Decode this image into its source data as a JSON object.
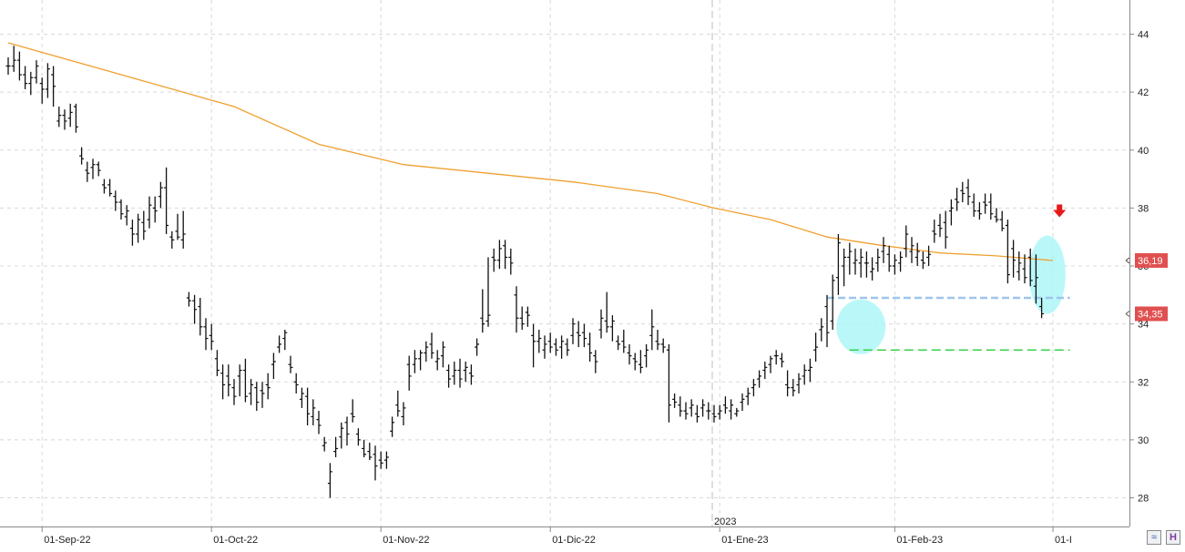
{
  "chart_data": {
    "type": "ohlc",
    "title": "",
    "xlabel": "",
    "ylabel": "",
    "ylim": [
      27,
      45
    ],
    "y_ticks": [
      28,
      30,
      32,
      34,
      36,
      38,
      40,
      42,
      44
    ],
    "grid": true,
    "x_labels": [
      {
        "label": "01-Sep-22",
        "index": 6
      },
      {
        "label": "01-Oct-22",
        "index": 36
      },
      {
        "label": "01-Nov-22",
        "index": 66
      },
      {
        "label": "01-Dic-22",
        "index": 96
      },
      {
        "label": "01-Ene-23",
        "index": 126
      },
      {
        "label": "01-Feb-23",
        "index": 157
      },
      {
        "label": "01-I",
        "index": 185
      }
    ],
    "year_marker": {
      "label": "2023",
      "index": 125
    },
    "ohlc": [
      [
        42.9,
        43.2,
        42.6,
        42.9
      ],
      [
        42.9,
        43.6,
        42.7,
        43.1
      ],
      [
        43.1,
        43.4,
        42.4,
        42.6
      ],
      [
        42.6,
        42.9,
        42.1,
        42.3
      ],
      [
        42.3,
        42.7,
        41.9,
        42.5
      ],
      [
        42.5,
        43.1,
        42.3,
        42.9
      ],
      [
        42.3,
        42.5,
        41.6,
        42.1
      ],
      [
        42.1,
        43.0,
        41.8,
        42.8
      ],
      [
        42.6,
        42.9,
        41.5,
        42.2
      ],
      [
        41.0,
        41.5,
        40.8,
        41.2
      ],
      [
        41.2,
        41.4,
        40.7,
        41.0
      ],
      [
        41.1,
        41.6,
        40.8,
        41.3
      ],
      [
        41.5,
        41.6,
        40.6,
        40.8
      ],
      [
        39.8,
        40.1,
        39.5,
        39.7
      ],
      [
        39.3,
        39.6,
        38.9,
        39.2
      ],
      [
        39.4,
        39.7,
        39.0,
        39.5
      ],
      [
        39.5,
        39.6,
        39.1,
        39.3
      ],
      [
        38.8,
        39.0,
        38.5,
        38.7
      ],
      [
        38.8,
        39.0,
        38.4,
        38.5
      ],
      [
        38.4,
        38.6,
        37.9,
        38.2
      ],
      [
        38.2,
        38.3,
        37.6,
        37.8
      ],
      [
        37.7,
        38.1,
        37.4,
        37.9
      ],
      [
        37.3,
        37.6,
        36.7,
        37.1
      ],
      [
        37.1,
        37.8,
        36.8,
        37.6
      ],
      [
        37.5,
        37.9,
        36.9,
        37.2
      ],
      [
        37.6,
        38.4,
        37.3,
        38.1
      ],
      [
        38.0,
        38.4,
        37.5,
        37.9
      ],
      [
        38.4,
        38.9,
        38.0,
        38.7
      ],
      [
        38.7,
        39.4,
        37.1,
        37.4
      ],
      [
        37.0,
        37.2,
        36.6,
        36.9
      ],
      [
        37.2,
        37.8,
        36.9,
        37.0
      ],
      [
        36.9,
        37.9,
        36.6,
        37.1
      ],
      [
        34.9,
        35.1,
        34.6,
        34.8
      ],
      [
        34.8,
        35.0,
        34.0,
        34.5
      ],
      [
        34.6,
        34.9,
        33.6,
        33.9
      ],
      [
        33.9,
        34.2,
        33.1,
        33.5
      ],
      [
        33.6,
        34.0,
        33.1,
        33.4
      ],
      [
        32.8,
        33.1,
        32.2,
        32.4
      ],
      [
        32.3,
        32.6,
        31.4,
        31.9
      ],
      [
        32.2,
        32.6,
        31.5,
        31.9
      ],
      [
        31.8,
        32.1,
        31.2,
        31.5
      ],
      [
        32.2,
        32.6,
        31.5,
        32.4
      ],
      [
        32.4,
        32.8,
        31.3,
        31.5
      ],
      [
        31.6,
        32.1,
        31.2,
        31.9
      ],
      [
        31.8,
        32.0,
        31.0,
        31.3
      ],
      [
        31.7,
        32.0,
        31.1,
        31.6
      ],
      [
        31.9,
        32.3,
        31.4,
        31.8
      ],
      [
        32.6,
        33.0,
        32.1,
        32.7
      ],
      [
        33.2,
        33.6,
        33.0,
        33.3
      ],
      [
        33.5,
        33.8,
        33.1,
        33.7
      ],
      [
        32.6,
        32.9,
        32.3,
        32.5
      ],
      [
        32.0,
        32.3,
        31.6,
        31.9
      ],
      [
        31.4,
        31.8,
        31.1,
        31.6
      ],
      [
        31.5,
        31.8,
        30.5,
        30.9
      ],
      [
        30.8,
        31.4,
        30.5,
        31.1
      ],
      [
        30.7,
        31.0,
        30.2,
        30.5
      ],
      [
        29.8,
        30.1,
        29.6,
        29.9
      ],
      [
        28.5,
        29.2,
        28.0,
        28.9
      ],
      [
        29.6,
        30.1,
        29.4,
        29.7
      ],
      [
        30.1,
        30.6,
        29.7,
        30.4
      ],
      [
        30.6,
        30.8,
        29.8,
        30.2
      ],
      [
        30.9,
        31.4,
        30.6,
        30.8
      ],
      [
        30.2,
        30.4,
        29.8,
        30.0
      ],
      [
        29.7,
        30.0,
        29.4,
        29.5
      ],
      [
        29.6,
        29.9,
        29.3,
        29.4
      ],
      [
        29.5,
        29.8,
        28.6,
        29.1
      ],
      [
        29.3,
        29.6,
        29.0,
        29.2
      ],
      [
        29.3,
        29.6,
        29.0,
        29.4
      ],
      [
        30.3,
        30.8,
        30.1,
        30.6
      ],
      [
        31.2,
        31.7,
        30.8,
        31.0
      ],
      [
        30.8,
        31.3,
        30.5,
        31.1
      ],
      [
        32.6,
        32.9,
        31.7,
        32.2
      ],
      [
        32.6,
        33.1,
        32.3,
        32.8
      ],
      [
        32.8,
        33.1,
        32.4,
        33.0
      ],
      [
        33.0,
        33.4,
        32.7,
        33.2
      ],
      [
        33.3,
        33.7,
        32.8,
        33.0
      ],
      [
        32.7,
        33.1,
        32.4,
        32.8
      ],
      [
        32.9,
        33.4,
        32.5,
        33.2
      ],
      [
        32.4,
        32.6,
        31.8,
        32.1
      ],
      [
        32.2,
        32.7,
        31.9,
        32.4
      ],
      [
        32.4,
        32.8,
        31.8,
        32.1
      ],
      [
        32.4,
        32.7,
        32.0,
        32.5
      ],
      [
        32.3,
        32.6,
        31.9,
        32.2
      ],
      [
        33.2,
        33.5,
        32.9,
        33.3
      ],
      [
        34.2,
        35.2,
        33.7,
        34.0
      ],
      [
        34.1,
        36.3,
        33.9,
        34.3
      ],
      [
        36.3,
        36.6,
        35.8,
        36.2
      ],
      [
        36.2,
        36.9,
        35.9,
        36.6
      ],
      [
        36.7,
        36.9,
        35.9,
        36.3
      ],
      [
        36.3,
        36.6,
        35.7,
        36.1
      ],
      [
        35.0,
        35.3,
        33.7,
        34.2
      ],
      [
        34.2,
        34.6,
        33.8,
        34.0
      ],
      [
        34.4,
        34.6,
        33.9,
        34.3
      ],
      [
        33.6,
        34.0,
        32.5,
        33.4
      ],
      [
        33.4,
        33.8,
        33.0,
        33.5
      ],
      [
        33.1,
        33.6,
        32.8,
        33.3
      ],
      [
        33.4,
        33.7,
        33.0,
        33.2
      ],
      [
        33.3,
        33.5,
        32.9,
        33.1
      ],
      [
        33.2,
        33.6,
        32.8,
        33.4
      ],
      [
        33.3,
        33.5,
        32.9,
        33.1
      ],
      [
        33.6,
        34.2,
        33.3,
        34.0
      ],
      [
        33.7,
        34.1,
        33.2,
        33.6
      ],
      [
        33.7,
        34.0,
        33.2,
        33.5
      ],
      [
        33.3,
        33.7,
        32.7,
        33.0
      ],
      [
        32.9,
        33.1,
        32.3,
        32.7
      ],
      [
        33.8,
        34.5,
        33.5,
        34.2
      ],
      [
        34.1,
        35.1,
        33.7,
        33.9
      ],
      [
        33.9,
        34.3,
        33.4,
        34.1
      ],
      [
        33.4,
        33.6,
        33.1,
        33.3
      ],
      [
        33.4,
        33.8,
        33.0,
        33.2
      ],
      [
        33.0,
        33.3,
        32.6,
        32.9
      ],
      [
        32.8,
        33.0,
        32.4,
        32.7
      ],
      [
        32.6,
        33.1,
        32.3,
        32.5
      ],
      [
        32.9,
        33.3,
        32.5,
        33.1
      ],
      [
        33.6,
        34.5,
        33.1,
        33.9
      ],
      [
        33.4,
        33.8,
        33.1,
        33.3
      ],
      [
        33.3,
        33.5,
        33.0,
        33.2
      ],
      [
        33.1,
        33.3,
        30.6,
        31.2
      ],
      [
        31.4,
        31.6,
        31.1,
        31.3
      ],
      [
        31.2,
        31.5,
        30.8,
        31.0
      ],
      [
        31.0,
        31.3,
        30.7,
        30.9
      ],
      [
        31.1,
        31.4,
        30.8,
        31.2
      ],
      [
        30.9,
        31.2,
        30.6,
        30.8
      ],
      [
        31.1,
        31.4,
        30.8,
        31.2
      ],
      [
        31.0,
        31.3,
        30.7,
        31.0
      ],
      [
        30.9,
        31.2,
        30.6,
        30.8
      ],
      [
        30.9,
        31.2,
        30.7,
        31.0
      ],
      [
        31.2,
        31.5,
        30.9,
        31.1
      ],
      [
        31.0,
        31.4,
        30.7,
        31.2
      ],
      [
        30.9,
        31.1,
        30.8,
        31.0
      ],
      [
        31.3,
        31.6,
        31.0,
        31.4
      ],
      [
        31.5,
        31.8,
        31.2,
        31.6
      ],
      [
        31.8,
        32.1,
        31.5,
        31.9
      ],
      [
        32.1,
        32.4,
        31.8,
        32.2
      ],
      [
        32.4,
        32.7,
        32.1,
        32.5
      ],
      [
        32.6,
        32.9,
        32.3,
        32.8
      ],
      [
        32.9,
        33.1,
        32.6,
        32.9
      ],
      [
        32.8,
        33.0,
        32.5,
        32.7
      ],
      [
        31.9,
        32.4,
        31.5,
        31.8
      ],
      [
        31.8,
        32.1,
        31.5,
        31.7
      ],
      [
        31.9,
        32.3,
        31.6,
        32.1
      ],
      [
        32.2,
        32.6,
        31.9,
        32.4
      ],
      [
        32.4,
        32.8,
        32.0,
        32.5
      ],
      [
        33.1,
        33.7,
        32.7,
        33.2
      ],
      [
        33.8,
        34.2,
        33.4,
        33.9
      ],
      [
        34.6,
        35.0,
        33.2,
        33.7
      ],
      [
        34.1,
        35.7,
        33.8,
        35.5
      ],
      [
        35.6,
        37.1,
        35.0,
        36.8
      ],
      [
        36.0,
        36.6,
        35.3,
        36.3
      ],
      [
        36.3,
        36.8,
        35.7,
        36.5
      ],
      [
        36.1,
        36.6,
        35.7,
        36.2
      ],
      [
        36.1,
        36.6,
        35.6,
        36.3
      ],
      [
        36.1,
        36.5,
        35.6,
        36.1
      ],
      [
        35.8,
        36.3,
        35.5,
        35.9
      ],
      [
        36.1,
        36.6,
        35.8,
        36.3
      ],
      [
        36.5,
        37.0,
        36.1,
        36.7
      ],
      [
        36.4,
        36.7,
        35.8,
        36.0
      ],
      [
        36.0,
        36.4,
        35.7,
        36.2
      ],
      [
        36.1,
        36.5,
        35.8,
        36.3
      ],
      [
        36.6,
        37.4,
        36.3,
        37.1
      ],
      [
        36.5,
        37.0,
        36.1,
        36.7
      ],
      [
        36.3,
        36.8,
        36.0,
        36.5
      ],
      [
        36.2,
        36.5,
        35.9,
        36.1
      ],
      [
        36.3,
        36.7,
        36.0,
        36.4
      ],
      [
        37.2,
        37.6,
        36.8,
        37.1
      ],
      [
        37.4,
        37.8,
        37.0,
        37.3
      ],
      [
        37.5,
        37.9,
        36.6,
        37.0
      ],
      [
        37.9,
        38.3,
        37.4,
        38.0
      ],
      [
        38.3,
        38.7,
        37.9,
        38.2
      ],
      [
        38.6,
        38.9,
        38.2,
        38.5
      ],
      [
        38.7,
        39.0,
        38.1,
        38.4
      ],
      [
        38.2,
        38.5,
        37.7,
        37.9
      ],
      [
        37.9,
        38.2,
        37.6,
        37.8
      ],
      [
        38.2,
        38.5,
        37.8,
        38.1
      ],
      [
        38.2,
        38.5,
        37.6,
        37.8
      ],
      [
        37.7,
        38.0,
        37.5,
        37.6
      ],
      [
        37.6,
        37.9,
        37.2,
        37.3
      ],
      [
        37.4,
        37.6,
        35.4,
        35.7
      ],
      [
        36.6,
        36.9,
        35.6,
        36.2
      ],
      [
        35.8,
        36.5,
        35.5,
        36.1
      ],
      [
        35.9,
        36.4,
        35.4,
        35.6
      ],
      [
        36.3,
        36.6,
        35.3,
        35.5
      ],
      [
        35.3,
        36.4,
        34.7,
        35.6
      ],
      [
        34.6,
        34.9,
        34.2,
        34.35
      ]
    ],
    "series": [
      {
        "name": "",
        "type": "line",
        "color": "#f0a030",
        "points": [
          [
            0,
            43.7
          ],
          [
            20,
            42.6
          ],
          [
            40,
            41.5
          ],
          [
            55,
            40.2
          ],
          [
            70,
            39.5
          ],
          [
            85,
            39.2
          ],
          [
            100,
            38.9
          ],
          [
            115,
            38.5
          ],
          [
            125,
            38.0
          ],
          [
            135,
            37.6
          ],
          [
            145,
            37.0
          ],
          [
            155,
            36.7
          ],
          [
            165,
            36.45
          ],
          [
            175,
            36.35
          ],
          [
            185,
            36.19
          ]
        ]
      }
    ],
    "annotations": {
      "price_labels": [
        {
          "value": 36.19,
          "text": "36,19",
          "color": "#e05050"
        },
        {
          "value": 34.35,
          "text": "34,35",
          "color": "#e05050"
        }
      ],
      "resistance_line": {
        "value": 34.9,
        "color": "#9ec4ea",
        "style": "dashed",
        "from_index": 145,
        "to_index": 188
      },
      "support_line": {
        "value": 33.1,
        "color": "#39d24a",
        "style": "dashed",
        "from_index": 149,
        "to_index": 188
      },
      "highlights": [
        {
          "index": 151,
          "value": 33.9,
          "color": "#aef6f8"
        },
        {
          "index": 184,
          "value": 35.7,
          "color": "#aef6f8"
        }
      ],
      "arrow": {
        "index": 186,
        "value": 37.9,
        "color": "#e81818",
        "direction": "down"
      }
    },
    "colors": {
      "bars": "#111111",
      "grid": "#d8d8d8",
      "axis": "#888888"
    }
  },
  "controls": {
    "zoom_icon": "zoom-chart-icon",
    "history_icon": "history-icon",
    "zoom_label": "≈",
    "history_label": "H"
  }
}
